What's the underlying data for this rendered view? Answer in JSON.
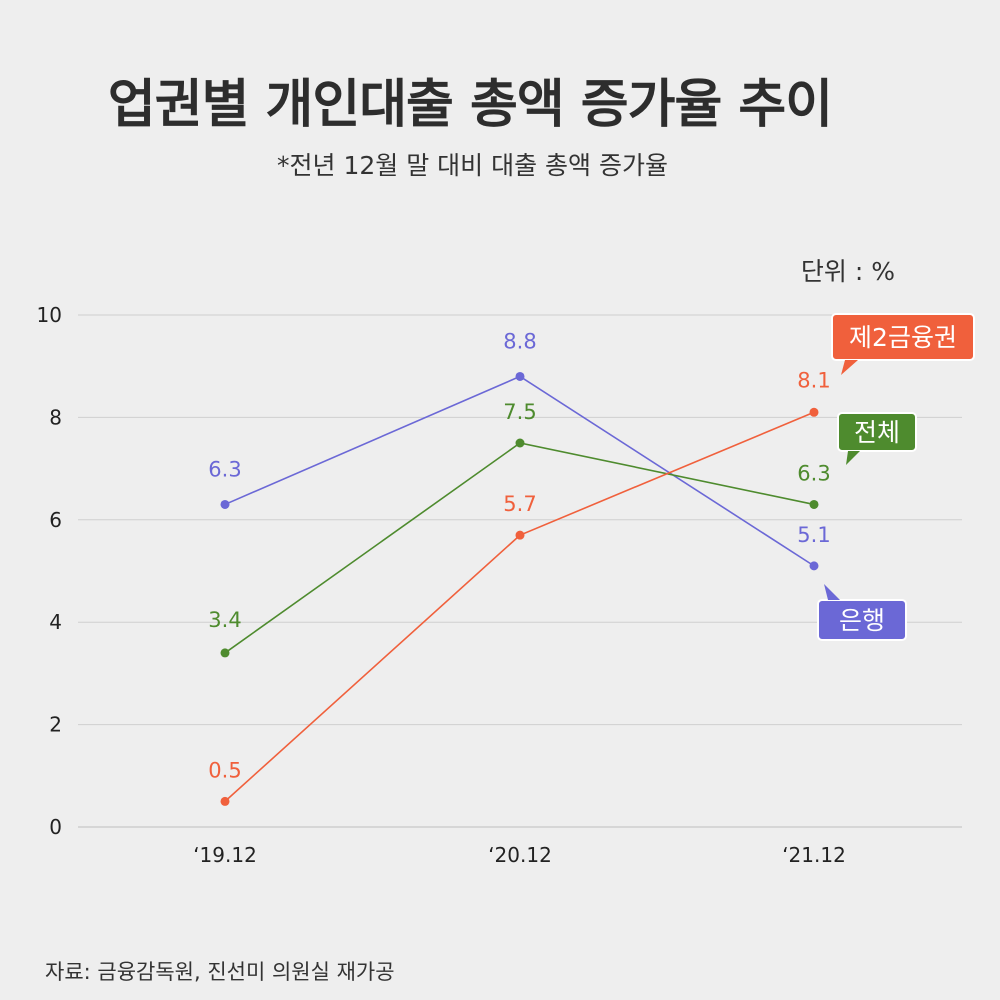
{
  "header": {
    "title": "업권별 개인대출 총액 증가율 추이",
    "subtitle": "*전년 12월 말 대비 대출 총액 증가율",
    "unit": "단위 : %"
  },
  "footer": {
    "source": "자료: 금융감독원, 진선미 의원실 재가공"
  },
  "chart_data": {
    "type": "line",
    "categories": [
      "‘19.12",
      "‘20.12",
      "‘21.12"
    ],
    "ylim": [
      0,
      10
    ],
    "yticks": [
      "0",
      "2",
      "4",
      "6",
      "8",
      "10"
    ],
    "grid": true,
    "legend": "callouts at line ends (right)",
    "series": [
      {
        "name": "은행",
        "values": [
          6.3,
          8.8,
          5.1
        ],
        "labels": [
          "6.3",
          "8.8",
          "5.1"
        ],
        "color": "#6b68d6"
      },
      {
        "name": "전체",
        "values": [
          3.4,
          7.5,
          6.3
        ],
        "labels": [
          "3.4",
          "7.5",
          "6.3"
        ],
        "color": "#4e8b2e"
      },
      {
        "name": "제2금융권",
        "values": [
          0.5,
          5.7,
          8.1
        ],
        "labels": [
          "0.5",
          "5.7",
          "8.1"
        ],
        "color": "#f0603c"
      }
    ]
  }
}
